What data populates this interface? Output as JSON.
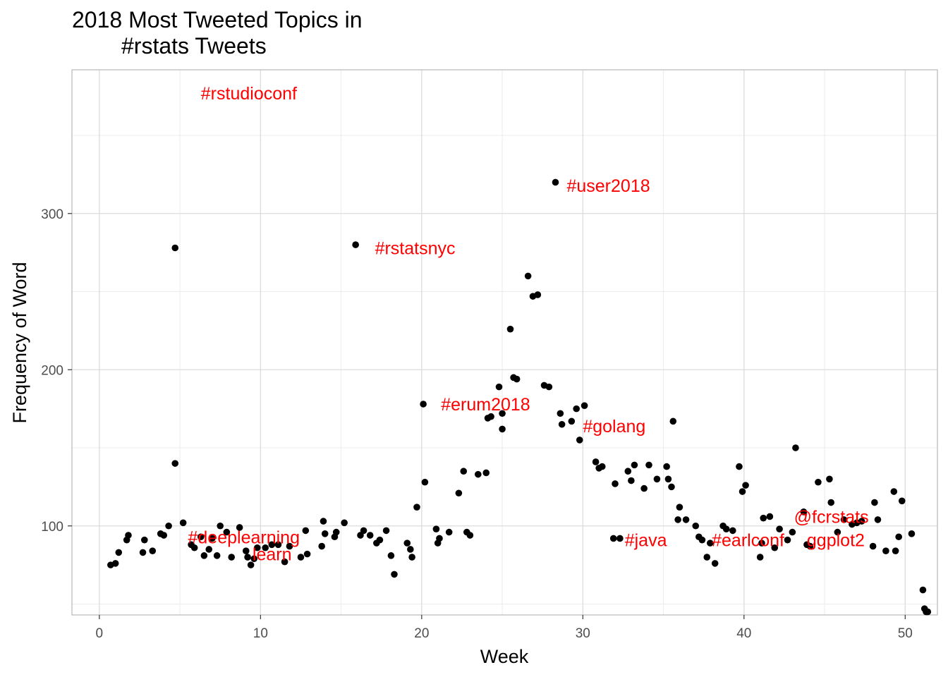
{
  "chart_data": {
    "type": "scatter",
    "title_lines": [
      "2018 Most Tweeted Topics in",
      "#rstats Tweets"
    ],
    "xlabel": "Week",
    "ylabel": "Frequency of Word",
    "xlim": [
      -1.7,
      52
    ],
    "ylim": [
      43,
      392
    ],
    "xticks": [
      0,
      10,
      20,
      30,
      40,
      50
    ],
    "yticks": [
      100,
      200,
      300
    ],
    "grid": true,
    "colors": {
      "points": "#000000",
      "labels": "#ff0000",
      "grid": "#dcdcdc",
      "panel_border": "#bdbdbd"
    },
    "points": [
      [
        0.7,
        75
      ],
      [
        1.0,
        76
      ],
      [
        1.2,
        83
      ],
      [
        1.7,
        91
      ],
      [
        1.8,
        94
      ],
      [
        2.7,
        83
      ],
      [
        2.8,
        91
      ],
      [
        3.3,
        84
      ],
      [
        3.8,
        95
      ],
      [
        4.0,
        94
      ],
      [
        4.3,
        100
      ],
      [
        4.7,
        140
      ],
      [
        4.7,
        278
      ],
      [
        5.2,
        102
      ],
      [
        5.7,
        88
      ],
      [
        5.9,
        86
      ],
      [
        6.3,
        93
      ],
      [
        6.5,
        81
      ],
      [
        6.8,
        85
      ],
      [
        7.0,
        92
      ],
      [
        7.3,
        81
      ],
      [
        7.5,
        100
      ],
      [
        7.9,
        96
      ],
      [
        8.2,
        80
      ],
      [
        8.7,
        99
      ],
      [
        9.1,
        84
      ],
      [
        9.2,
        80
      ],
      [
        9.4,
        75
      ],
      [
        9.6,
        79
      ],
      [
        9.8,
        86
      ],
      [
        10.3,
        86
      ],
      [
        10.7,
        88
      ],
      [
        11.1,
        88
      ],
      [
        11.5,
        77
      ],
      [
        11.8,
        87
      ],
      [
        12.5,
        80
      ],
      [
        12.8,
        97
      ],
      [
        12.9,
        82
      ],
      [
        13.8,
        87
      ],
      [
        13.9,
        103
      ],
      [
        14.0,
        95
      ],
      [
        14.6,
        93
      ],
      [
        14.7,
        96
      ],
      [
        15.2,
        102
      ],
      [
        15.9,
        280
      ],
      [
        16.2,
        94
      ],
      [
        16.4,
        97
      ],
      [
        16.8,
        94
      ],
      [
        17.2,
        89
      ],
      [
        17.4,
        91
      ],
      [
        17.8,
        97
      ],
      [
        18.1,
        81
      ],
      [
        18.3,
        69
      ],
      [
        19.1,
        89
      ],
      [
        19.3,
        85
      ],
      [
        19.4,
        80
      ],
      [
        19.7,
        112
      ],
      [
        20.1,
        178
      ],
      [
        20.2,
        128
      ],
      [
        20.9,
        98
      ],
      [
        21.0,
        89
      ],
      [
        21.1,
        92
      ],
      [
        21.7,
        96
      ],
      [
        22.3,
        121
      ],
      [
        22.6,
        135
      ],
      [
        22.8,
        96
      ],
      [
        23.0,
        94
      ],
      [
        23.5,
        133
      ],
      [
        24.0,
        134
      ],
      [
        24.1,
        169
      ],
      [
        24.3,
        170
      ],
      [
        24.8,
        189
      ],
      [
        25.0,
        172
      ],
      [
        25.0,
        162
      ],
      [
        25.5,
        226
      ],
      [
        25.7,
        195
      ],
      [
        25.9,
        194
      ],
      [
        26.6,
        260
      ],
      [
        26.9,
        247
      ],
      [
        27.2,
        248
      ],
      [
        27.6,
        190
      ],
      [
        27.9,
        189
      ],
      [
        28.3,
        320
      ],
      [
        28.6,
        172
      ],
      [
        28.7,
        165
      ],
      [
        29.3,
        167
      ],
      [
        29.6,
        175
      ],
      [
        29.8,
        155
      ],
      [
        30.1,
        177
      ],
      [
        30.8,
        141
      ],
      [
        31.0,
        137
      ],
      [
        31.2,
        138
      ],
      [
        31.9,
        92
      ],
      [
        32.0,
        127
      ],
      [
        32.3,
        92
      ],
      [
        32.8,
        135
      ],
      [
        33.0,
        129
      ],
      [
        33.2,
        139
      ],
      [
        33.8,
        124
      ],
      [
        34.1,
        139
      ],
      [
        34.6,
        130
      ],
      [
        35.2,
        138
      ],
      [
        35.3,
        130
      ],
      [
        35.5,
        125
      ],
      [
        35.6,
        167
      ],
      [
        35.9,
        104
      ],
      [
        36.0,
        112
      ],
      [
        36.4,
        104
      ],
      [
        37.0,
        100
      ],
      [
        37.2,
        93
      ],
      [
        37.4,
        91
      ],
      [
        37.7,
        80
      ],
      [
        37.9,
        89
      ],
      [
        38.2,
        76
      ],
      [
        38.7,
        100
      ],
      [
        38.9,
        98
      ],
      [
        39.3,
        97
      ],
      [
        39.7,
        138
      ],
      [
        39.9,
        122
      ],
      [
        40.1,
        126
      ],
      [
        41.0,
        80
      ],
      [
        41.1,
        89
      ],
      [
        41.2,
        105
      ],
      [
        41.6,
        106
      ],
      [
        41.9,
        86
      ],
      [
        42.2,
        98
      ],
      [
        42.7,
        91
      ],
      [
        43.0,
        96
      ],
      [
        43.2,
        150
      ],
      [
        43.7,
        109
      ],
      [
        43.9,
        88
      ],
      [
        44.1,
        87
      ],
      [
        44.6,
        128
      ],
      [
        45.3,
        130
      ],
      [
        45.4,
        115
      ],
      [
        45.8,
        96
      ],
      [
        46.2,
        104
      ],
      [
        46.7,
        101
      ],
      [
        47.0,
        102
      ],
      [
        47.3,
        103
      ],
      [
        48.0,
        87
      ],
      [
        48.1,
        115
      ],
      [
        48.3,
        104
      ],
      [
        48.8,
        84
      ],
      [
        49.3,
        122
      ],
      [
        49.4,
        84
      ],
      [
        49.6,
        93
      ],
      [
        49.8,
        116
      ],
      [
        50.4,
        95
      ],
      [
        51.1,
        59
      ],
      [
        51.2,
        47
      ],
      [
        51.3,
        45
      ],
      [
        51.4,
        45
      ]
    ],
    "annotations": [
      {
        "text": "#rstudioconf",
        "x": 6.3,
        "y": 377
      },
      {
        "text": "#user2018",
        "x": 29.0,
        "y": 318
      },
      {
        "text": "#rstatsnyc",
        "x": 17.1,
        "y": 278
      },
      {
        "text": "#erum2018",
        "x": 21.2,
        "y": 178
      },
      {
        "text": "#golang",
        "x": 30.0,
        "y": 164
      },
      {
        "text": "#deeplearning",
        "x": 5.5,
        "y": 93
      },
      {
        "text": "learn",
        "x": 9.5,
        "y": 82
      },
      {
        "text": "#java",
        "x": 32.6,
        "y": 91
      },
      {
        "text": "#earlconf",
        "x": 38.0,
        "y": 91
      },
      {
        "text": "@fcrstats",
        "x": 43.1,
        "y": 106
      },
      {
        "text": "ggplot2",
        "x": 43.9,
        "y": 91
      }
    ]
  }
}
